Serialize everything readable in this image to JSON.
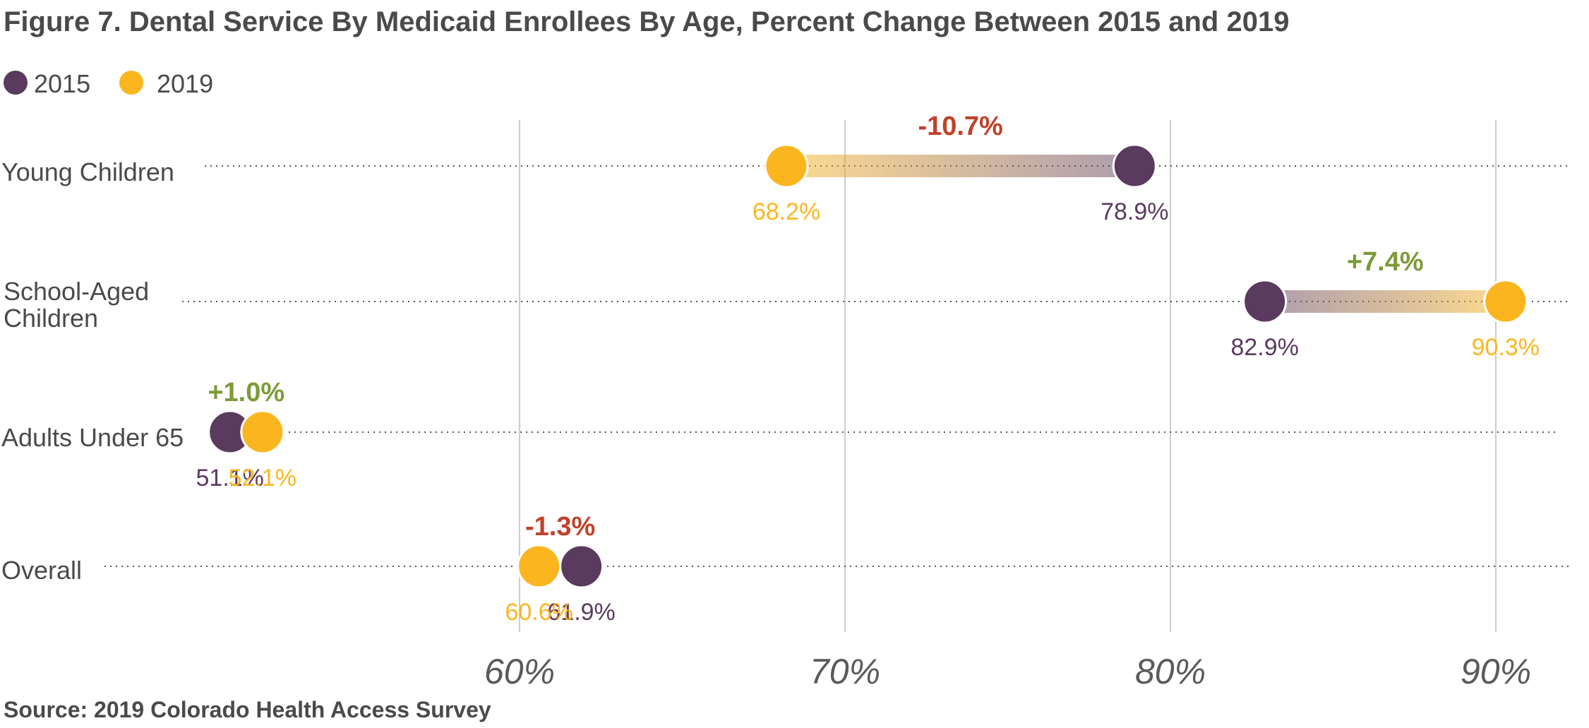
{
  "title": "Figure 7. Dental Service By Medicaid Enrollees By Age, Percent Change Between 2015 and 2019",
  "source": "Source: 2019 Colorado Health Access Survey",
  "colors": {
    "series_2015": "#5b3a5f",
    "series_2019": "#fbb61f",
    "negative_change": "#c0422a",
    "positive_change": "#7c9b37",
    "text": "#4a4a4a",
    "gridline": "#cccccc"
  },
  "chart_data": {
    "type": "dumbbell",
    "title": "Figure 7. Dental Service By Medicaid Enrollees By Age, Percent Change Between 2015 and 2019",
    "xlabel": "",
    "ylabel": "",
    "x_ticks": [
      "60%",
      "70%",
      "80%",
      "90%"
    ],
    "x_tick_values": [
      60,
      70,
      80,
      90
    ],
    "legend": [
      "2015",
      "2019"
    ],
    "legend_placement": "top-left",
    "grid": "vertical",
    "categories": [
      "Young Children",
      "School-Aged Children",
      "Adults Under 65",
      "Overall"
    ],
    "series": [
      {
        "name": "2015",
        "values": [
          78.9,
          82.9,
          51.1,
          61.9
        ],
        "labels": [
          "78.9%",
          "82.9%",
          "51.1%",
          "61.9%"
        ]
      },
      {
        "name": "2019",
        "values": [
          68.2,
          90.3,
          52.1,
          60.6
        ],
        "labels": [
          "68.2%",
          "90.3%",
          "52.1%",
          "60.6%"
        ]
      }
    ],
    "changes": [
      {
        "text": "-10.7%",
        "direction": "negative"
      },
      {
        "text": "+7.4%",
        "direction": "positive"
      },
      {
        "text": "+1.0%",
        "direction": "positive"
      },
      {
        "text": "-1.3%",
        "direction": "negative"
      }
    ]
  }
}
